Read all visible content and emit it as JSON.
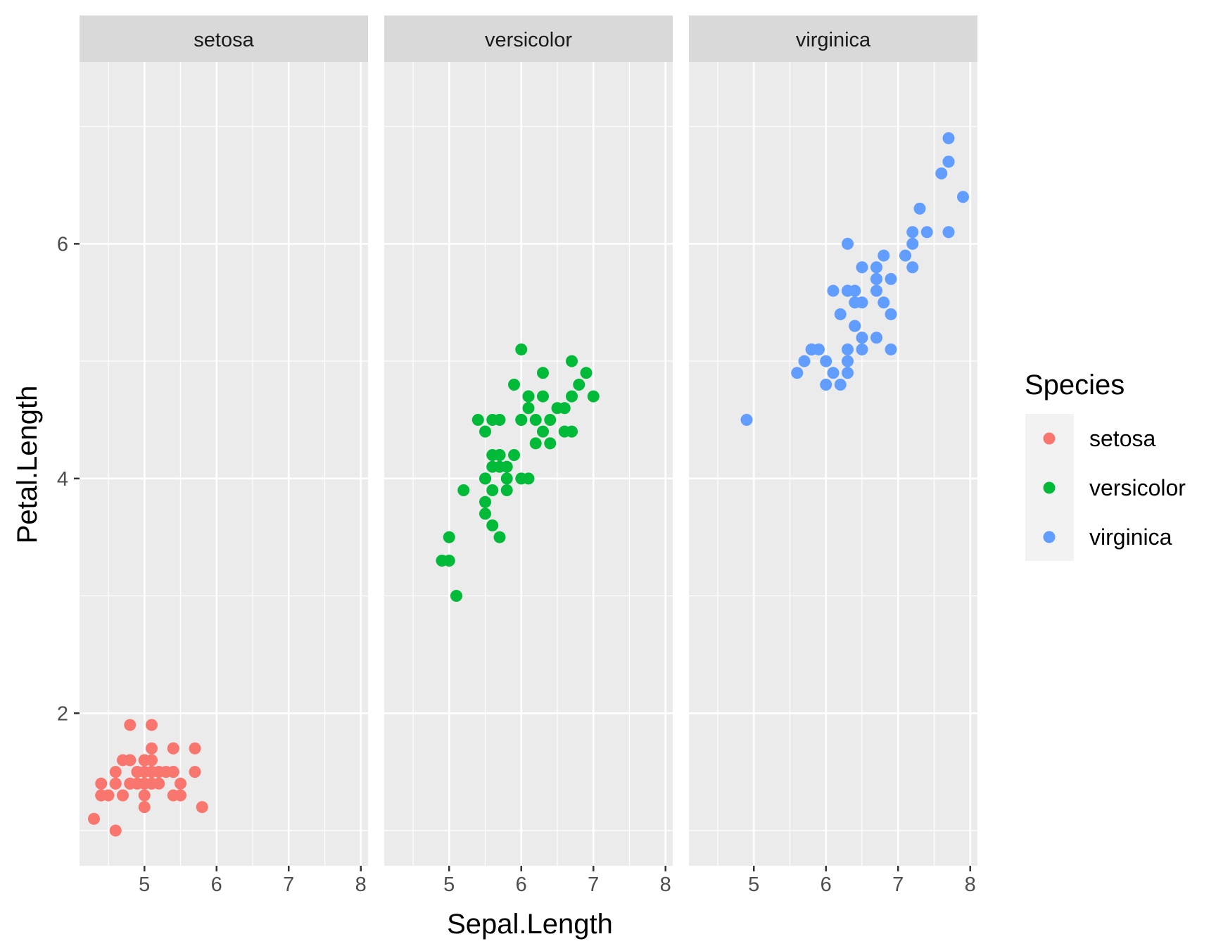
{
  "chart_data": {
    "type": "scatter",
    "faceted_by": "Species",
    "xlabel": "Sepal.Length",
    "ylabel": "Petal.Length",
    "xlim": [
      4.1,
      8.1
    ],
    "ylim": [
      0.7,
      7.55
    ],
    "x_ticks": [
      5,
      6,
      7,
      8
    ],
    "y_ticks": [
      2,
      4,
      6
    ],
    "legend": {
      "title": "Species",
      "position": "right",
      "entries": [
        {
          "label": "setosa",
          "color": "#F8766D"
        },
        {
          "label": "versicolor",
          "color": "#00BA38"
        },
        {
          "label": "virginica",
          "color": "#619CFF"
        }
      ]
    },
    "panels": [
      {
        "name": "setosa",
        "color": "#F8766D",
        "points": [
          [
            5.1,
            1.4
          ],
          [
            4.9,
            1.4
          ],
          [
            4.7,
            1.3
          ],
          [
            4.6,
            1.5
          ],
          [
            5.0,
            1.4
          ],
          [
            5.4,
            1.7
          ],
          [
            4.6,
            1.4
          ],
          [
            5.0,
            1.5
          ],
          [
            4.4,
            1.4
          ],
          [
            4.9,
            1.5
          ],
          [
            5.4,
            1.5
          ],
          [
            4.8,
            1.6
          ],
          [
            4.8,
            1.4
          ],
          [
            4.3,
            1.1
          ],
          [
            5.8,
            1.2
          ],
          [
            5.7,
            1.5
          ],
          [
            5.4,
            1.3
          ],
          [
            5.1,
            1.4
          ],
          [
            5.7,
            1.7
          ],
          [
            5.1,
            1.5
          ],
          [
            5.4,
            1.7
          ],
          [
            5.1,
            1.5
          ],
          [
            4.6,
            1.0
          ],
          [
            5.1,
            1.7
          ],
          [
            4.8,
            1.9
          ],
          [
            5.0,
            1.6
          ],
          [
            5.0,
            1.6
          ],
          [
            5.2,
            1.5
          ],
          [
            5.2,
            1.4
          ],
          [
            4.7,
            1.6
          ],
          [
            4.8,
            1.6
          ],
          [
            5.4,
            1.5
          ],
          [
            5.2,
            1.5
          ],
          [
            5.5,
            1.4
          ],
          [
            4.9,
            1.5
          ],
          [
            5.0,
            1.2
          ],
          [
            5.5,
            1.3
          ],
          [
            4.9,
            1.4
          ],
          [
            4.4,
            1.3
          ],
          [
            5.1,
            1.5
          ],
          [
            5.0,
            1.3
          ],
          [
            4.5,
            1.3
          ],
          [
            4.4,
            1.3
          ],
          [
            5.0,
            1.6
          ],
          [
            5.1,
            1.9
          ],
          [
            4.8,
            1.4
          ],
          [
            5.1,
            1.6
          ],
          [
            4.6,
            1.4
          ],
          [
            5.3,
            1.5
          ],
          [
            5.0,
            1.4
          ]
        ]
      },
      {
        "name": "versicolor",
        "color": "#00BA38",
        "points": [
          [
            7.0,
            4.7
          ],
          [
            6.4,
            4.5
          ],
          [
            6.9,
            4.9
          ],
          [
            5.5,
            4.0
          ],
          [
            6.5,
            4.6
          ],
          [
            5.7,
            4.5
          ],
          [
            6.3,
            4.7
          ],
          [
            4.9,
            3.3
          ],
          [
            6.6,
            4.6
          ],
          [
            5.2,
            3.9
          ],
          [
            5.0,
            3.5
          ],
          [
            5.9,
            4.2
          ],
          [
            6.0,
            4.0
          ],
          [
            6.1,
            4.7
          ],
          [
            5.6,
            3.6
          ],
          [
            6.7,
            4.4
          ],
          [
            5.6,
            4.5
          ],
          [
            5.8,
            4.1
          ],
          [
            6.2,
            4.5
          ],
          [
            5.6,
            3.9
          ],
          [
            5.9,
            4.8
          ],
          [
            6.1,
            4.0
          ],
          [
            6.3,
            4.9
          ],
          [
            6.1,
            4.7
          ],
          [
            6.4,
            4.3
          ],
          [
            6.6,
            4.4
          ],
          [
            6.8,
            4.8
          ],
          [
            6.7,
            5.0
          ],
          [
            6.0,
            4.5
          ],
          [
            5.7,
            3.5
          ],
          [
            5.5,
            3.8
          ],
          [
            5.5,
            3.7
          ],
          [
            5.8,
            3.9
          ],
          [
            6.0,
            5.1
          ],
          [
            5.4,
            4.5
          ],
          [
            6.0,
            4.5
          ],
          [
            6.7,
            4.7
          ],
          [
            6.3,
            4.4
          ],
          [
            5.6,
            4.1
          ],
          [
            5.5,
            4.0
          ],
          [
            5.5,
            4.4
          ],
          [
            6.1,
            4.6
          ],
          [
            5.8,
            4.0
          ],
          [
            5.0,
            3.3
          ],
          [
            5.6,
            4.2
          ],
          [
            5.7,
            4.2
          ],
          [
            5.7,
            4.2
          ],
          [
            6.2,
            4.3
          ],
          [
            5.1,
            3.0
          ],
          [
            5.7,
            4.1
          ]
        ]
      },
      {
        "name": "virginica",
        "color": "#619CFF",
        "points": [
          [
            6.3,
            6.0
          ],
          [
            5.8,
            5.1
          ],
          [
            7.1,
            5.9
          ],
          [
            6.3,
            5.6
          ],
          [
            6.5,
            5.8
          ],
          [
            7.6,
            6.6
          ],
          [
            4.9,
            4.5
          ],
          [
            7.3,
            6.3
          ],
          [
            6.7,
            5.8
          ],
          [
            7.2,
            6.1
          ],
          [
            6.5,
            5.1
          ],
          [
            6.4,
            5.3
          ],
          [
            6.8,
            5.5
          ],
          [
            5.7,
            5.0
          ],
          [
            5.8,
            5.1
          ],
          [
            6.4,
            5.3
          ],
          [
            6.5,
            5.5
          ],
          [
            7.7,
            6.7
          ],
          [
            7.7,
            6.9
          ],
          [
            6.0,
            5.0
          ],
          [
            6.9,
            5.7
          ],
          [
            5.6,
            4.9
          ],
          [
            7.7,
            6.7
          ],
          [
            6.3,
            4.9
          ],
          [
            6.7,
            5.7
          ],
          [
            7.2,
            6.0
          ],
          [
            6.2,
            4.8
          ],
          [
            6.1,
            4.9
          ],
          [
            6.4,
            5.6
          ],
          [
            7.2,
            5.8
          ],
          [
            7.4,
            6.1
          ],
          [
            7.9,
            6.4
          ],
          [
            6.4,
            5.6
          ],
          [
            6.3,
            5.1
          ],
          [
            6.1,
            5.6
          ],
          [
            7.7,
            6.1
          ],
          [
            6.3,
            5.6
          ],
          [
            6.4,
            5.5
          ],
          [
            6.0,
            4.8
          ],
          [
            6.9,
            5.4
          ],
          [
            6.7,
            5.6
          ],
          [
            6.9,
            5.1
          ],
          [
            5.8,
            5.1
          ],
          [
            6.8,
            5.9
          ],
          [
            6.7,
            5.7
          ],
          [
            6.7,
            5.2
          ],
          [
            6.3,
            5.0
          ],
          [
            6.5,
            5.2
          ],
          [
            6.2,
            5.4
          ],
          [
            5.9,
            5.1
          ]
        ]
      }
    ]
  }
}
